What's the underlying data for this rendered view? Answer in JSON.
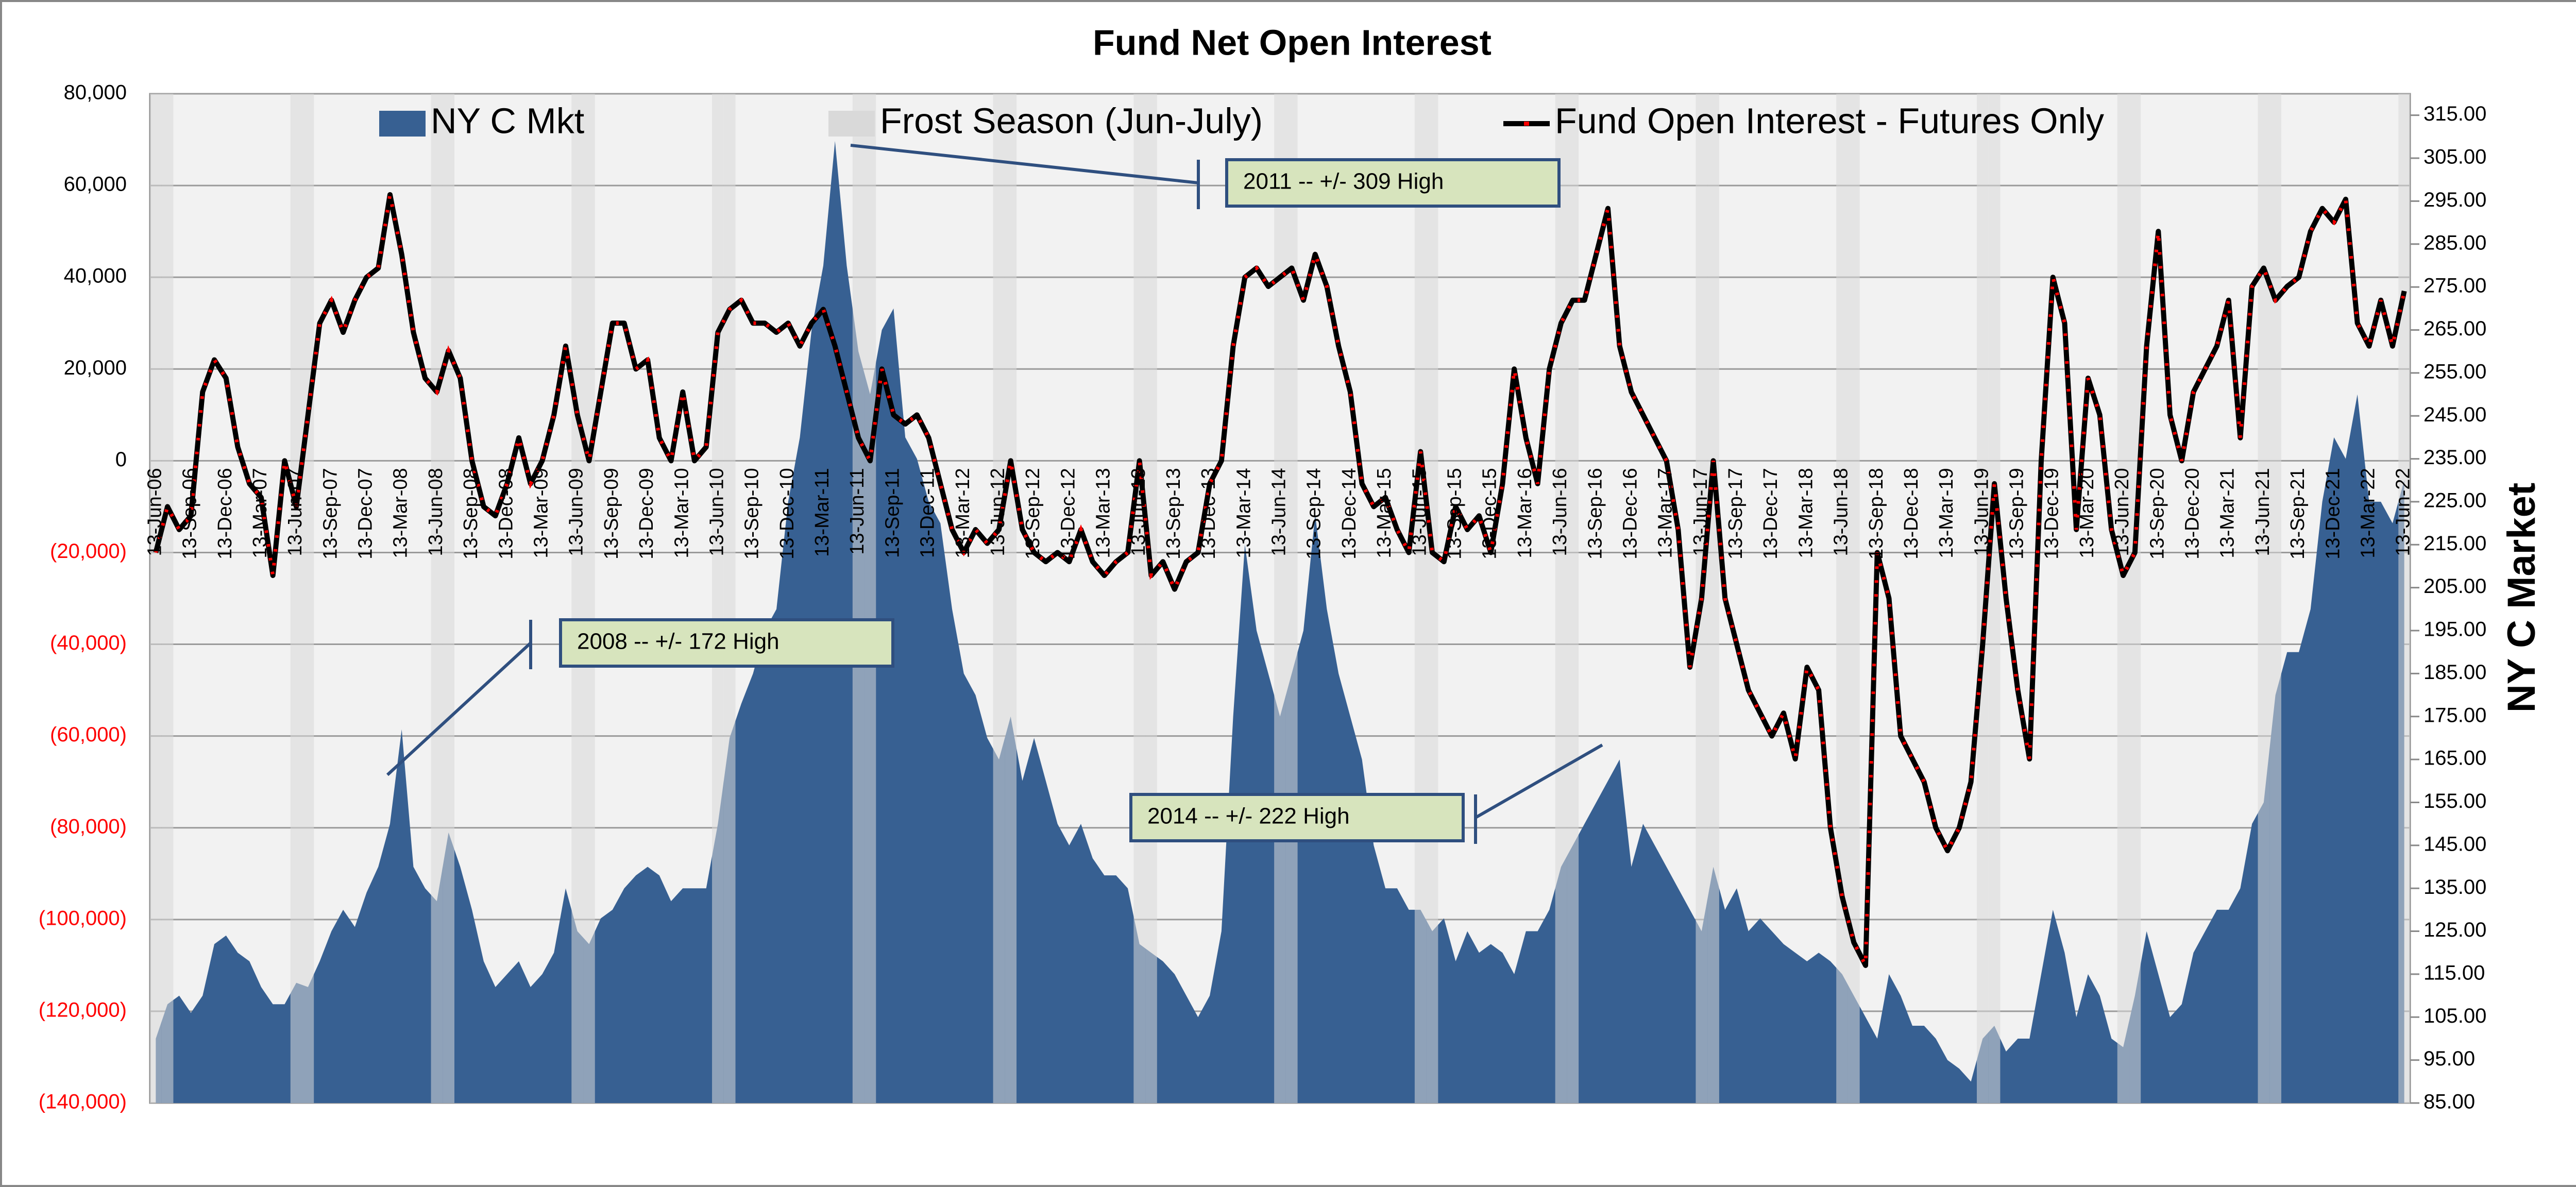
{
  "chart_data": {
    "type": "area_line",
    "title": "Fund Net Open Interest",
    "y2_label": "NY C Market",
    "categories": [
      "13-Jun-06",
      null,
      null,
      "13-Sep-06",
      null,
      null,
      "13-Dec-06",
      null,
      null,
      "13-Mar-07",
      null,
      null,
      "13-Jun-07",
      null,
      null,
      "13-Sep-07",
      null,
      null,
      "13-Dec-07",
      null,
      null,
      "13-Mar-08",
      null,
      null,
      "13-Jun-08",
      null,
      null,
      "13-Sep-08",
      null,
      null,
      "13-Dec-08",
      null,
      null,
      "13-Mar-09",
      null,
      null,
      "13-Jun-09",
      null,
      null,
      "13-Sep-09",
      null,
      null,
      "13-Dec-09",
      null,
      null,
      "13-Mar-10",
      null,
      null,
      "13-Jun-10",
      null,
      null,
      "13-Sep-10",
      null,
      null,
      "13-Dec-10",
      null,
      null,
      "13-Mar-11",
      null,
      null,
      "13-Jun-11",
      null,
      null,
      "13-Sep-11",
      null,
      null,
      "13-Dec-11",
      null,
      null,
      "13-Mar-12",
      null,
      null,
      "13-Jun-12",
      null,
      null,
      "13-Sep-12",
      null,
      null,
      "13-Dec-12",
      null,
      null,
      "13-Mar-13",
      null,
      null,
      "13-Jun-13",
      null,
      null,
      "13-Sep-13",
      null,
      null,
      "13-Dec-13",
      null,
      null,
      "13-Mar-14",
      null,
      null,
      "13-Jun-14",
      null,
      null,
      "13-Sep-14",
      null,
      null,
      "13-Dec-14",
      null,
      null,
      "13-Mar-15",
      null,
      null,
      "13-Jun-15",
      null,
      null,
      "13-Sep-15",
      null,
      null,
      "13-Dec-15",
      null,
      null,
      "13-Mar-16",
      null,
      null,
      "13-Jun-16",
      null,
      null,
      "13-Sep-16",
      null,
      null,
      "13-Dec-16",
      null,
      null,
      "13-Mar-17",
      null,
      null,
      "13-Jun-17",
      null,
      null,
      "13-Sep-17",
      null,
      null,
      "13-Dec-17",
      null,
      null,
      "13-Mar-18",
      null,
      null,
      "13-Jun-18",
      null,
      null,
      "13-Sep-18",
      null,
      null,
      "13-Dec-18",
      null,
      null,
      "13-Mar-19",
      null,
      null,
      "13-Jun-19",
      null,
      null,
      "13-Sep-19",
      null,
      null,
      "13-Dec-19",
      null,
      null,
      "13-Mar-20",
      null,
      null,
      "13-Jun-20",
      null,
      null,
      "13-Sep-20",
      null,
      null,
      "13-Dec-20",
      null,
      null,
      "13-Mar-21",
      null,
      null,
      "13-Jun-21",
      null,
      null,
      "13-Sep-21",
      null,
      null,
      "13-Dec-21",
      null,
      null,
      "13-Mar-22",
      null,
      null,
      "13-Jun-22"
    ],
    "series": [
      {
        "name": "NY C Mkt",
        "kind": "area",
        "axis": "y2",
        "color": "#376092",
        "values": [
          100,
          108,
          110,
          106,
          110,
          122,
          124,
          120,
          118,
          112,
          108,
          108,
          113,
          112,
          118,
          125,
          130,
          126,
          134,
          140,
          150,
          172,
          140,
          135,
          132,
          148,
          140,
          130,
          118,
          112,
          115,
          118,
          112,
          115,
          120,
          135,
          125,
          122,
          128,
          130,
          135,
          138,
          140,
          138,
          132,
          135,
          135,
          135,
          150,
          170,
          178,
          185,
          195,
          200,
          225,
          240,
          265,
          280,
          309,
          280,
          260,
          250,
          265,
          270,
          240,
          235,
          225,
          220,
          200,
          185,
          180,
          170,
          165,
          175,
          160,
          170,
          160,
          150,
          145,
          150,
          142,
          138,
          138,
          135,
          122,
          120,
          118,
          115,
          110,
          105,
          110,
          125,
          175,
          215,
          195,
          185,
          175,
          185,
          195,
          222,
          200,
          185,
          175,
          165,
          145,
          135,
          135,
          130,
          130,
          125,
          128,
          118,
          125,
          120,
          122,
          120,
          115,
          125,
          125,
          130,
          140,
          145,
          150,
          155,
          160,
          165,
          140,
          150,
          145,
          140,
          135,
          130,
          125,
          140,
          130,
          135,
          125,
          128,
          125,
          122,
          120,
          118,
          120,
          118,
          115,
          110,
          105,
          100,
          115,
          110,
          103,
          103,
          100,
          95,
          93,
          90,
          100,
          103,
          97,
          100,
          100,
          115,
          130,
          120,
          105,
          115,
          110,
          100,
          98,
          110,
          125,
          115,
          105,
          108,
          120,
          125,
          130,
          130,
          135,
          150,
          155,
          180,
          190,
          190,
          200,
          225,
          240,
          235,
          250,
          225,
          225,
          220,
          230
        ]
      },
      {
        "name": "Frost Season (Jun-July)",
        "kind": "band",
        "axis": "y2",
        "color": "#d9d9d9",
        "values": [
          320,
          320,
          null,
          null,
          null,
          null,
          null,
          null,
          null,
          null,
          null,
          null,
          320,
          320,
          null,
          null,
          null,
          null,
          null,
          null,
          null,
          null,
          null,
          null,
          320,
          320,
          null,
          null,
          null,
          null,
          null,
          null,
          null,
          null,
          null,
          null,
          320,
          320,
          null,
          null,
          null,
          null,
          null,
          null,
          null,
          null,
          null,
          null,
          320,
          320,
          null,
          null,
          null,
          null,
          null,
          null,
          null,
          null,
          null,
          null,
          320,
          320,
          null,
          null,
          null,
          null,
          null,
          null,
          null,
          null,
          null,
          null,
          320,
          320,
          null,
          null,
          null,
          null,
          null,
          null,
          null,
          null,
          null,
          null,
          320,
          320,
          null,
          null,
          null,
          null,
          null,
          null,
          null,
          null,
          null,
          null,
          320,
          320,
          null,
          null,
          null,
          null,
          null,
          null,
          null,
          null,
          null,
          null,
          320,
          320,
          null,
          null,
          null,
          null,
          null,
          null,
          null,
          null,
          null,
          null,
          320,
          320,
          null,
          null,
          null,
          null,
          null,
          null,
          null,
          null,
          null,
          null,
          320,
          320,
          null,
          null,
          null,
          null,
          null,
          null,
          null,
          null,
          null,
          null,
          320,
          320,
          null,
          null,
          null,
          null,
          null,
          null,
          null,
          null,
          null,
          null,
          320,
          320,
          null,
          null,
          null,
          null,
          null,
          null,
          null,
          null,
          null,
          null,
          320,
          320,
          null,
          null,
          null,
          null,
          null,
          null,
          null,
          null,
          null,
          null,
          320,
          320,
          null,
          null,
          null,
          null,
          null,
          null,
          null,
          null,
          null,
          null,
          320
        ]
      },
      {
        "name": "Fund Open Interest - Futures Only",
        "kind": "line",
        "axis": "y",
        "color": "#000000",
        "marker_color": "#ff0000",
        "values": [
          -20000,
          -10000,
          -15000,
          -12000,
          15000,
          22000,
          18000,
          3000,
          -5000,
          -8000,
          -25000,
          0,
          -10000,
          10000,
          30000,
          35000,
          28000,
          35000,
          40000,
          42000,
          58000,
          45000,
          28000,
          18000,
          15000,
          24000,
          18000,
          0,
          -10000,
          -12000,
          -5000,
          5000,
          -5000,
          0,
          10000,
          25000,
          10000,
          0,
          15000,
          30000,
          30000,
          20000,
          22000,
          5000,
          0,
          15000,
          0,
          3000,
          28000,
          33000,
          35000,
          30000,
          30000,
          28000,
          30000,
          25000,
          30000,
          33000,
          25000,
          15000,
          5000,
          0,
          20000,
          10000,
          8000,
          10000,
          5000,
          -5000,
          -15000,
          -20000,
          -15000,
          -18000,
          -15000,
          0,
          -15000,
          -20000,
          -22000,
          -20000,
          -22000,
          -15000,
          -22000,
          -25000,
          -22000,
          -20000,
          0,
          -25000,
          -22000,
          -28000,
          -22000,
          -20000,
          -5000,
          0,
          25000,
          40000,
          42000,
          38000,
          40000,
          42000,
          35000,
          45000,
          38000,
          25000,
          15000,
          -5000,
          -10000,
          -8000,
          -15000,
          -20000,
          2000,
          -20000,
          -22000,
          -10000,
          -15000,
          -12000,
          -20000,
          -5000,
          20000,
          5000,
          -5000,
          20000,
          30000,
          35000,
          35000,
          45000,
          55000,
          25000,
          15000,
          10000,
          5000,
          0,
          -15000,
          -45000,
          -30000,
          0,
          -30000,
          -40000,
          -50000,
          -55000,
          -60000,
          -55000,
          -65000,
          -45000,
          -50000,
          -80000,
          -95000,
          -105000,
          -110000,
          -20000,
          -30000,
          -60000,
          -65000,
          -70000,
          -80000,
          -85000,
          -80000,
          -70000,
          -40000,
          -5000,
          -30000,
          -50000,
          -65000,
          0,
          40000,
          30000,
          -15000,
          18000,
          10000,
          -15000,
          -25000,
          -20000,
          25000,
          50000,
          10000,
          0,
          15000,
          20000,
          25000,
          35000,
          5000,
          38000,
          42000,
          35000,
          38000,
          40000,
          50000,
          55000,
          52000,
          57000,
          30000,
          25000,
          35000,
          25000,
          37000
        ]
      }
    ],
    "ylim": [
      -140000,
      80000
    ],
    "yticks": [
      {
        "value": -140000,
        "label": "(140,000)"
      },
      {
        "value": -120000,
        "label": "(120,000)"
      },
      {
        "value": -100000,
        "label": "(100,000)"
      },
      {
        "value": -80000,
        "label": "(80,000)"
      },
      {
        "value": -60000,
        "label": "(60,000)"
      },
      {
        "value": -40000,
        "label": "(40,000)"
      },
      {
        "value": -20000,
        "label": "(20,000)"
      },
      0,
      {
        "value": 20000,
        "label": "20,000"
      },
      {
        "value": 40000,
        "label": "40,000"
      },
      {
        "value": 60000,
        "label": "60,000"
      },
      {
        "value": 80000,
        "label": "80,000"
      }
    ],
    "y2lim": [
      85,
      320
    ],
    "y2ticks": [
      {
        "value": 85,
        "label": "85.00"
      },
      {
        "value": 95,
        "label": "95.00"
      },
      {
        "value": 105,
        "label": "105.00"
      },
      {
        "value": 115,
        "label": "115.00"
      },
      {
        "value": 125,
        "label": "125.00"
      },
      {
        "value": 135,
        "label": "135.00"
      },
      {
        "value": 145,
        "label": "145.00"
      },
      {
        "value": 155,
        "label": "155.00"
      },
      {
        "value": 165,
        "label": "165.00"
      },
      {
        "value": 175,
        "label": "175.00"
      },
      {
        "value": 185,
        "label": "185.00"
      },
      {
        "value": 195,
        "label": "195.00"
      },
      {
        "value": 205,
        "label": "205.00"
      },
      {
        "value": 215,
        "label": "215.00"
      },
      {
        "value": 225,
        "label": "225.00"
      },
      {
        "value": 235,
        "label": "235.00"
      },
      {
        "value": 245,
        "label": "245.00"
      },
      {
        "value": 255,
        "label": "255.00"
      },
      {
        "value": 265,
        "label": "265.00"
      },
      {
        "value": 275,
        "label": "275.00"
      },
      {
        "value": 285,
        "label": "285.00"
      },
      {
        "value": 295,
        "label": "295.00"
      },
      {
        "value": 305,
        "label": "305.00"
      },
      {
        "value": 315,
        "label": "315.00"
      }
    ],
    "grid": true,
    "legend": "top",
    "annotations": [
      {
        "text": "2011 -- +/- 309 High"
      },
      {
        "text": "2008 -- +/- 172 High"
      },
      {
        "text": "2014 -- +/- 222 High"
      }
    ]
  }
}
